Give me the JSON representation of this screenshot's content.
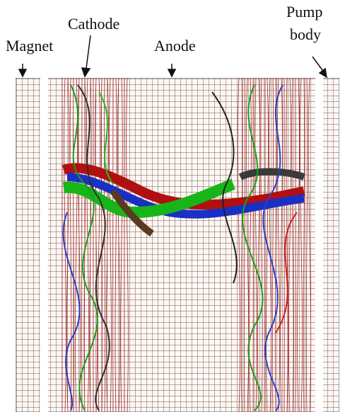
{
  "labels": {
    "magnet": "Magnet",
    "cathode": "Cathode",
    "anode": "Anode",
    "pump_body": [
      "Pump",
      "body"
    ]
  }
}
